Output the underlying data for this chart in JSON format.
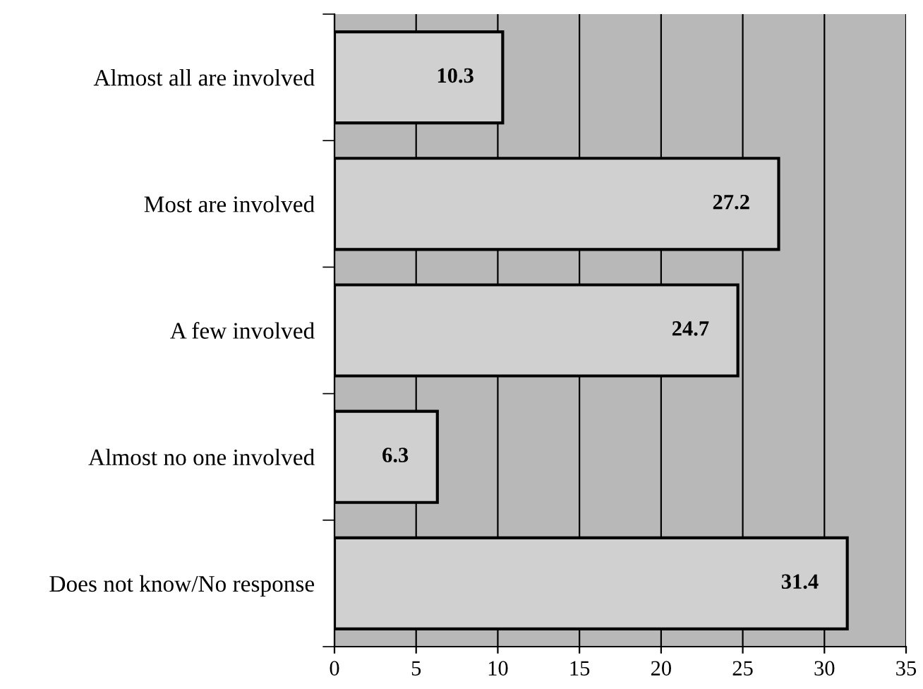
{
  "chart_data": {
    "type": "bar",
    "orientation": "horizontal",
    "categories": [
      "Almost all are involved",
      "Most are involved",
      "A few involved",
      "Almost no one involved",
      "Does not know/No response"
    ],
    "values": [
      10.3,
      27.2,
      24.7,
      6.3,
      31.4
    ],
    "color": "#d0d0d0",
    "xlim": [
      0,
      35
    ],
    "xticks": [
      0,
      5,
      10,
      15,
      20,
      25,
      30,
      35
    ],
    "grid": "x",
    "data_labels": true
  }
}
